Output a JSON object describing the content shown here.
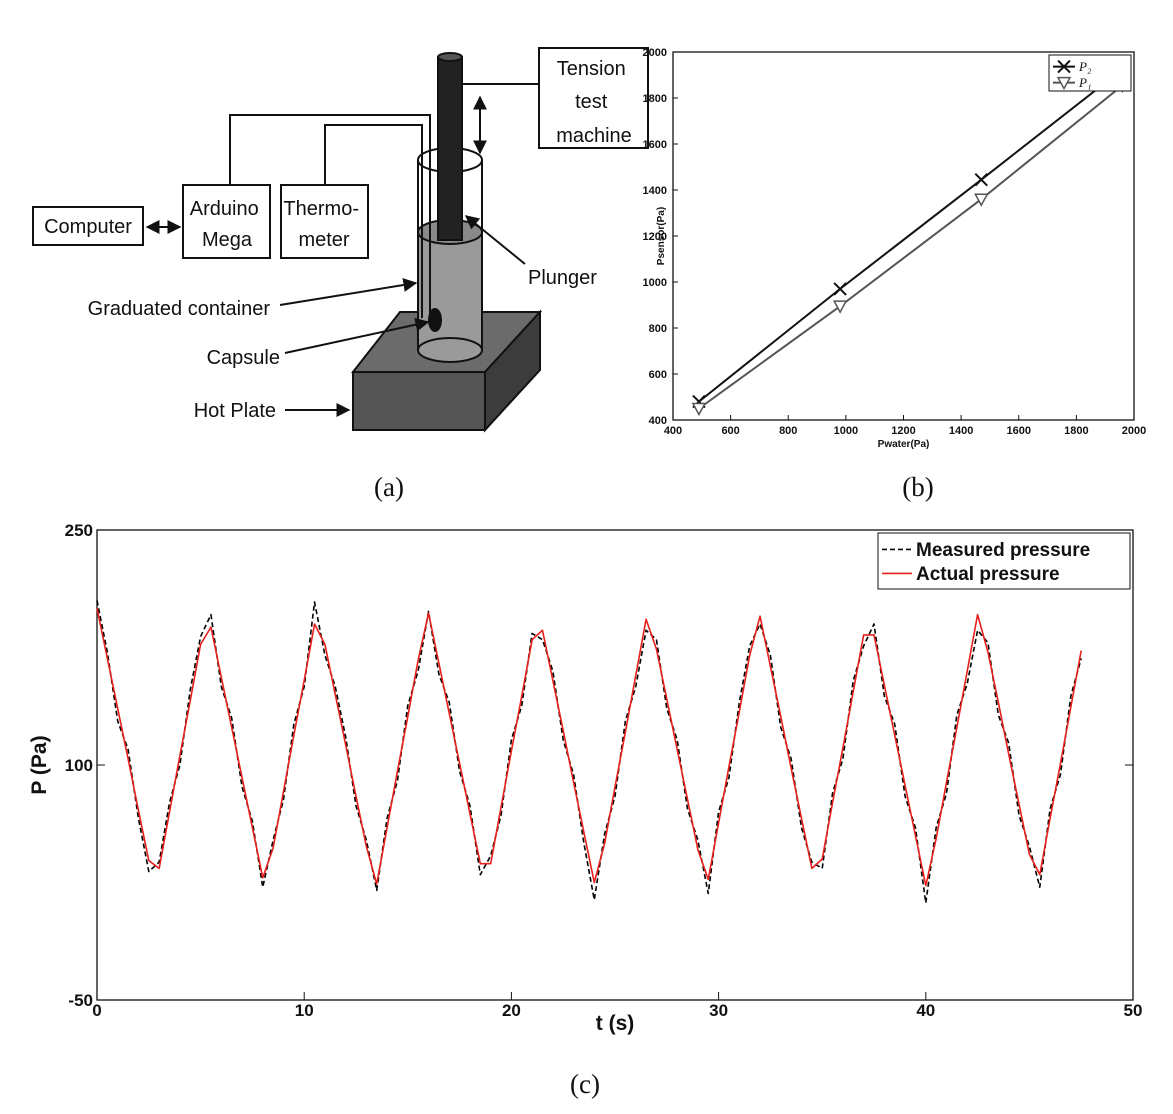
{
  "diagram": {
    "tension": [
      "Tension",
      "test",
      "machine"
    ],
    "computer": "Computer",
    "arduino": [
      "Arduino",
      "Mega"
    ],
    "thermometer": [
      "Thermo-",
      "meter"
    ],
    "plunger": "Plunger",
    "container": "Graduated container",
    "capsule": "Capsule",
    "hotplate": "Hot Plate"
  },
  "captions": [
    "(a)",
    "(b)",
    "(c)"
  ],
  "chart_data": [
    {
      "type": "line",
      "xlabel": "Pwater(Pa)",
      "ylabel": "Psensor(Pa)",
      "x": [
        490,
        980,
        1470,
        1960
      ],
      "series": [
        {
          "name": "P₂",
          "color": "#111111",
          "marker": "x",
          "values": [
            480,
            970,
            1445,
            1925
          ]
        },
        {
          "name": "P₁",
          "color": "#555555",
          "marker": "triangle-down",
          "values": [
            450,
            895,
            1360,
            1855
          ]
        }
      ],
      "xlim": [
        400,
        2000
      ],
      "xticks": [
        400,
        600,
        800,
        1000,
        1200,
        1400,
        1600,
        1800,
        2000
      ],
      "ylim": [
        400,
        2000
      ],
      "yticks": [
        400,
        600,
        800,
        1000,
        1200,
        1400,
        1600,
        1800,
        2000
      ],
      "grid": false,
      "legend": "upper right"
    },
    {
      "type": "line",
      "xlabel": "t (s)",
      "ylabel": "P (Pa)",
      "x": [
        0,
        0.5,
        1,
        1.5,
        2,
        2.5,
        3,
        3.5,
        4,
        4.5,
        5,
        5.5,
        6,
        6.5,
        7,
        7.5,
        8,
        8.5,
        9,
        9.5,
        10,
        10.5,
        11,
        11.5,
        12,
        12.5,
        13,
        13.5,
        14,
        14.5,
        15,
        15.5,
        16,
        16.5,
        17,
        17.5,
        18,
        18.5,
        19,
        19.5,
        20,
        20.5,
        21,
        21.5,
        22,
        22.5,
        23,
        23.5,
        24,
        24.5,
        25,
        25.5,
        26,
        26.5,
        27,
        27.5,
        28,
        28.5,
        29,
        29.5,
        30,
        30.5,
        31,
        31.5,
        32,
        32.5,
        33,
        33.5,
        34,
        34.5,
        35,
        35.5,
        36,
        36.5,
        37,
        37.5,
        38,
        38.5,
        39,
        39.5,
        40,
        40.5,
        41,
        41.5,
        42,
        42.5,
        43,
        43.5,
        44,
        44.5,
        45,
        45.5,
        46,
        46.5,
        47,
        47.5
      ],
      "series": [
        {
          "name": "Measured pressure",
          "color": "#000000",
          "linestyle": "dashed",
          "values": [
            205,
            172,
            128,
            110,
            66,
            32,
            38,
            76,
            100,
            148,
            182,
            196,
            150,
            130,
            86,
            64,
            22,
            52,
            78,
            126,
            150,
            204,
            170,
            150,
            118,
            74,
            52,
            20,
            66,
            90,
            138,
            160,
            198,
            158,
            140,
            96,
            74,
            30,
            42,
            68,
            116,
            138,
            184,
            180,
            160,
            116,
            94,
            50,
            14,
            56,
            80,
            128,
            150,
            186,
            180,
            136,
            116,
            72,
            52,
            18,
            70,
            92,
            140,
            176,
            190,
            170,
            124,
            104,
            60,
            38,
            34,
            82,
            104,
            154,
            176,
            190,
            144,
            126,
            80,
            60,
            12,
            60,
            82,
            132,
            152,
            186,
            178,
            132,
            114,
            68,
            48,
            22,
            72,
            94,
            144,
            168
          ]
        },
        {
          "name": "Actual pressure",
          "color": "#e8201c",
          "linestyle": "solid",
          "values": [
            200,
            168,
            136,
            104,
            71,
            39,
            34,
            70,
            106,
            141,
            177,
            188,
            156,
            124,
            92,
            60,
            28,
            47,
            83,
            119,
            154,
            190,
            177,
            145,
            113,
            80,
            48,
            24,
            60,
            96,
            131,
            167,
            197,
            165,
            133,
            101,
            69,
            37,
            37,
            73,
            109,
            144,
            180,
            186,
            154,
            122,
            89,
            57,
            25,
            50,
            86,
            121,
            157,
            193,
            174,
            142,
            110,
            78,
            46,
            27,
            63,
            99,
            134,
            170,
            195,
            163,
            131,
            98,
            66,
            34,
            40,
            76,
            111,
            147,
            183,
            183,
            151,
            119,
            87,
            55,
            23,
            53,
            89,
            124,
            160,
            196,
            172,
            140,
            107,
            75,
            43,
            30,
            66,
            101,
            137,
            173
          ]
        }
      ],
      "xlim": [
        0,
        50
      ],
      "xticks": [
        0,
        10,
        20,
        30,
        40,
        50
      ],
      "ylim": [
        -50,
        250
      ],
      "yticks": [
        -50,
        100,
        250
      ],
      "grid": false,
      "legend": "upper right"
    }
  ]
}
